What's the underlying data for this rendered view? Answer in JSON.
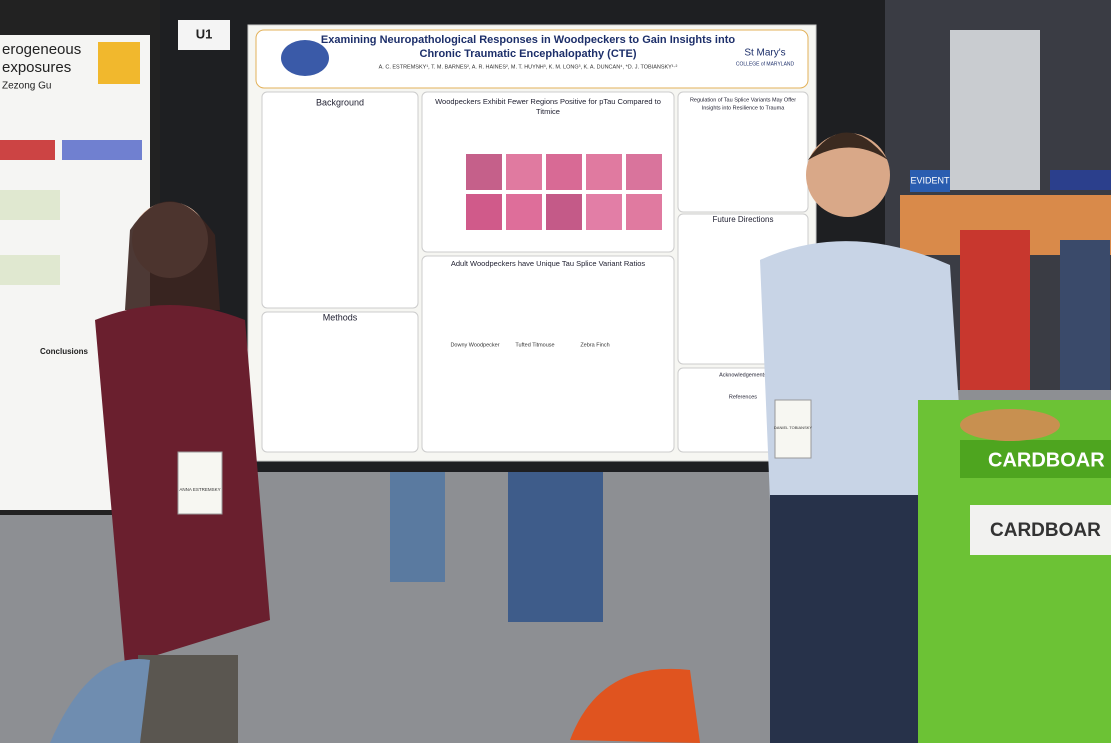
{
  "booth": {
    "label": "U1"
  },
  "poster": {
    "title_line1": "Examining Neuropathological Responses in Woodpeckers to Gain Insights into",
    "title_line2": "Chronic Traumatic Encephalopathy (CTE)",
    "authors": "A. C. ESTREMSKY¹, T. M. BARNES², A. R. HAINES², M. T. HUYNH³, K. M. LONG³, K. A. DUNCAN⁴, *D. J. TOBIANSKY¹·²",
    "logo_line1": "St Mary's",
    "logo_line2": "COLLEGE of MARYLAND",
    "sections": {
      "background": "Background",
      "ptau_line1": "Woodpeckers Exhibit Fewer Regions Positive for pTau Compared to",
      "ptau_line2": "Titmice",
      "regulation_line1": "Regulation of Tau Splice Variants May Offer",
      "regulation_line2": "Insights into Resilience to Trauma",
      "future": "Future Directions",
      "splice": "Adult Woodpeckers have Unique Tau Splice Variant Ratios",
      "methods": "Methods",
      "acknowledgements": "Acknowledgements",
      "references": "References"
    },
    "species": [
      "Downy Woodpecker",
      "Tufted Titmouse",
      "Zebra Finch"
    ]
  },
  "left_poster": {
    "line1": "erogeneous",
    "line2": "exposures",
    "line3": "Zezong Gu",
    "section": "Conclusions"
  },
  "badges": {
    "left": "ANNA ESTREMSKY",
    "right": "DANIEL TOBIANSKY"
  },
  "signs": {
    "bin_top": "CARDBOAR",
    "bin_side": "CARDBOAR",
    "banner": "EVIDENT"
  }
}
